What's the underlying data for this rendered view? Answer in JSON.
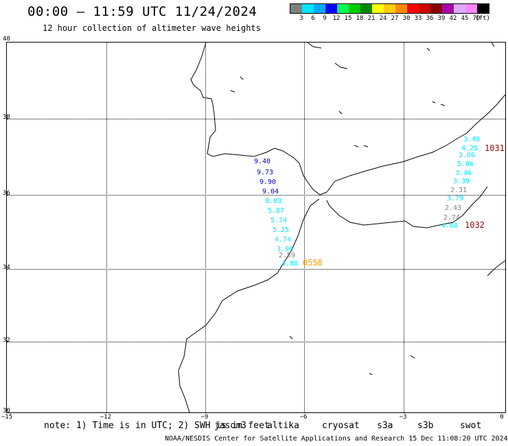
{
  "header": {
    "title": "00:00 – 11:59 UTC 11/24/2024",
    "subtitle": "12 hour collection of altimeter wave heights"
  },
  "legend": {
    "colors": [
      "#808080",
      "#00e5ff",
      "#00aaff",
      "#0000ff",
      "#00ff55",
      "#00cc00",
      "#008800",
      "#ffff00",
      "#ffcc00",
      "#ff8800",
      "#ff0000",
      "#cc0000",
      "#880000",
      "#aa00aa",
      "#ddaaff",
      "#ff88ff",
      "#000000"
    ],
    "labels": [
      "3",
      "6",
      "9",
      "12",
      "15",
      "18",
      "21",
      "24",
      "27",
      "30",
      "33",
      "36",
      "39",
      "42",
      "45",
      "70",
      "(ft)"
    ]
  },
  "axes": {
    "lat_labels": [
      "40",
      "38",
      "36",
      "34",
      "32",
      "30"
    ],
    "lon_labels": [
      "−15",
      "−12",
      "−9",
      "−6",
      "−3",
      "0"
    ]
  },
  "tracks": [
    {
      "values": [
        "9.40",
        "9.73",
        "9.90",
        "9.04",
        "8.03",
        "5.87",
        "5.74",
        "5.25",
        "4.74",
        "3.96",
        "2.59",
        "3.88"
      ],
      "colors": [
        "#0000cc",
        "#0000cc",
        "#0000cc",
        "#0000cc",
        "#00e5ff",
        "#00e5ff",
        "#00e5ff",
        "#00e5ff",
        "#00e5ff",
        "#00e5ff",
        "#808080",
        "#00e5ff"
      ],
      "time_label": "0558",
      "time_color": "#ff9900"
    },
    {
      "values": [
        "3.49",
        "4.25",
        "3.06",
        "5.06",
        "3.46",
        "3.39",
        "2.31",
        "3.79",
        "2.43",
        "2.74",
        "4.60"
      ],
      "colors": [
        "#00e5ff",
        "#00e5ff",
        "#00e5ff",
        "#00e5ff",
        "#00e5ff",
        "#00e5ff",
        "#808080",
        "#00e5ff",
        "#808080",
        "#808080",
        "#00e5ff"
      ],
      "time_labels": [
        "1031",
        "1032"
      ],
      "time_color": "#990000"
    }
  ],
  "note": "note: 1) Time is in UTC; 2) SWH is in feet",
  "satellites": [
    {
      "name": "jason3",
      "color": "#008800"
    },
    {
      "name": "altika",
      "color": "#ff9900"
    },
    {
      "name": "cryosat",
      "color": "#ff0000"
    },
    {
      "name": "s3a",
      "color": "#990000"
    },
    {
      "name": "s3b",
      "color": "#bbaaee"
    },
    {
      "name": "swot",
      "color": "#ff88ee"
    }
  ],
  "footer": "NOAA/NESDIS Center for Satellite Applications and Research   15 Dec 11:08:20 UTC 2024"
}
